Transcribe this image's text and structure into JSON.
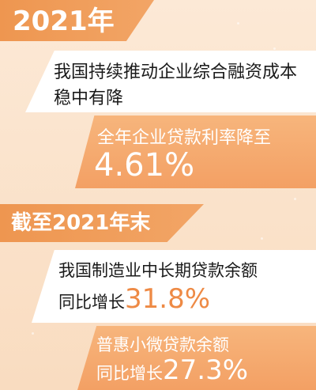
{
  "section1": {
    "tab": "2021年",
    "statement_line1": "我国持续推动企业综合融资成本",
    "statement_line2": "稳中有降",
    "highlight_label": "全年企业贷款利率降至",
    "highlight_value": "4.61%"
  },
  "section2": {
    "tab": "截至2021年末",
    "item1_line1": "我国制造业中长期贷款余额",
    "item1_prefix": "同比增长",
    "item1_value": "31.8%",
    "item2_line1": "普惠小微贷款余额",
    "item2_prefix": "同比增长",
    "item2_value": "27.3%"
  },
  "colors": {
    "accent_orange": "#ee8a45",
    "tab_orange": "#ee9650",
    "card_orange": "#f3a064",
    "background_peach": "#fbe7d2"
  }
}
